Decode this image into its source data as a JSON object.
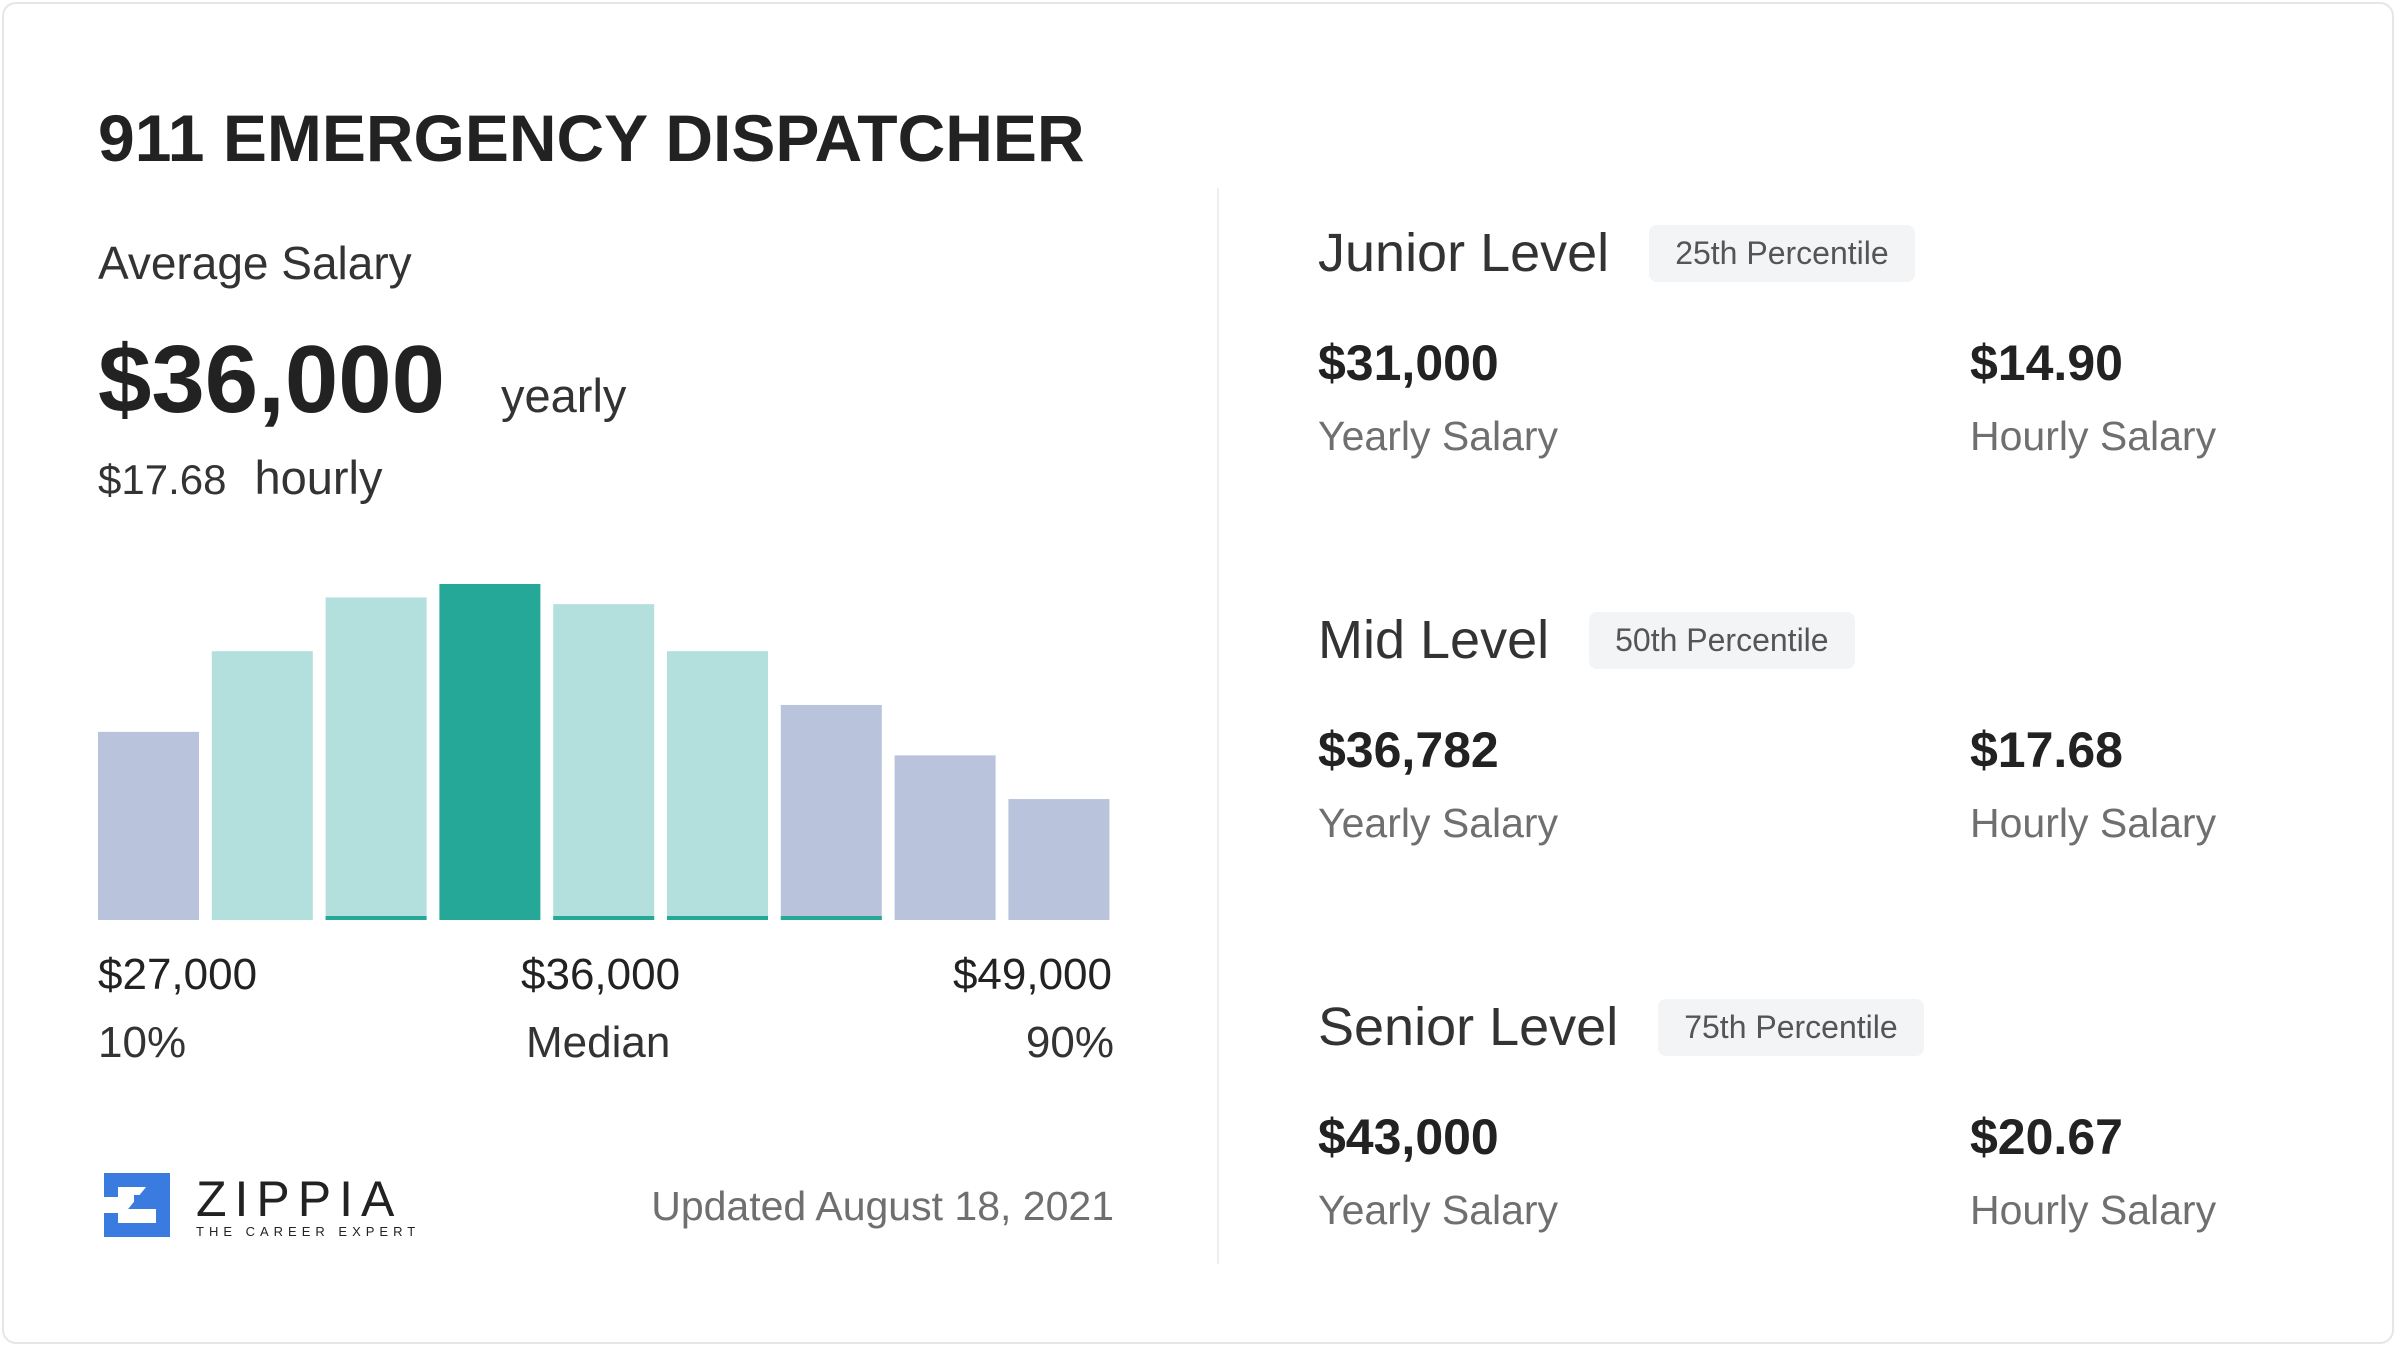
{
  "title": "911 EMERGENCY DISPATCHER",
  "average": {
    "label": "Average Salary",
    "yearly": "$36,000",
    "yearly_unit": "yearly",
    "hourly": "$17.68",
    "hourly_unit": "hourly"
  },
  "chart_data": {
    "type": "bar",
    "values": [
      56,
      80,
      96,
      100,
      94,
      80,
      64,
      49,
      36
    ],
    "colors": [
      "#b9c4dc",
      "#b3e0dc",
      "#b3e0dc",
      "#25a898",
      "#b3e0dc",
      "#b3e0dc",
      "#b9c4dc",
      "#b9c4dc",
      "#b9c4dc"
    ],
    "labels": {
      "low": {
        "value": "$27,000",
        "pct": "10%"
      },
      "mid": {
        "value": "$36,000",
        "pct": "Median"
      },
      "high": {
        "value": "$49,000",
        "pct": "90%"
      }
    }
  },
  "levels": [
    {
      "name": "Junior Level",
      "badge": "25th Percentile",
      "yearly": "$31,000",
      "yearly_label": "Yearly Salary",
      "hourly": "$14.90",
      "hourly_label": "Hourly Salary"
    },
    {
      "name": "Mid Level",
      "badge": "50th Percentile",
      "yearly": "$36,782",
      "yearly_label": "Yearly Salary",
      "hourly": "$17.68",
      "hourly_label": "Hourly Salary"
    },
    {
      "name": "Senior Level",
      "badge": "75th Percentile",
      "yearly": "$43,000",
      "yearly_label": "Yearly Salary",
      "hourly": "$20.67",
      "hourly_label": "Hourly Salary"
    }
  ],
  "footer": {
    "logo": "ZIPPIA",
    "tagline": "THE CAREER EXPERT",
    "updated": "Updated August 18, 2021"
  },
  "colors": {
    "accent": "#25a898",
    "logo": "#3a7be0"
  }
}
